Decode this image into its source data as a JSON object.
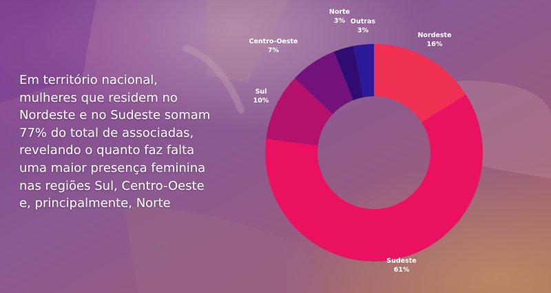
{
  "caption": {
    "lines": [
      "Em território nacional,",
      "mulheres que residem no",
      "Nordeste e no Sudeste somam",
      "77% do total de associadas,",
      "revelando o quanto faz falta",
      "uma maior presença feminina",
      "nas regiões Sul, Centro-Oeste",
      "e, principalmente, Norte"
    ]
  },
  "chart_data": {
    "type": "pie",
    "style": "donut",
    "slices": [
      {
        "label": "Nordeste",
        "value": 16,
        "value_label": "16%",
        "color": "#ef3053"
      },
      {
        "label": "Sudeste",
        "value": 61,
        "value_label": "61%",
        "color": "#ea1260"
      },
      {
        "label": "Sul",
        "value": 10,
        "value_label": "10%",
        "color": "#b3116a"
      },
      {
        "label": "Centro-Oeste",
        "value": 7,
        "value_label": "7%",
        "color": "#72127a"
      },
      {
        "label": "Norte",
        "value": 3,
        "value_label": "3%",
        "color": "#2f0c72"
      },
      {
        "label": "Outras",
        "value": 3,
        "value_label": "3%",
        "color": "#2a1a9a"
      }
    ]
  }
}
